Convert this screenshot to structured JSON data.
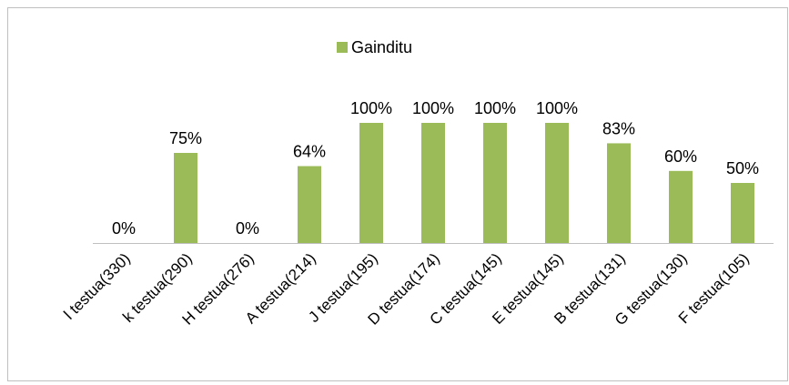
{
  "chart_data": {
    "type": "bar",
    "legend": "top",
    "series": [
      {
        "name": "Gainditu",
        "color": "#9bbb59",
        "values": [
          0,
          75,
          0,
          64,
          100,
          100,
          100,
          100,
          83,
          60,
          50
        ],
        "value_labels": [
          "0%",
          "75%",
          "0%",
          "64%",
          "100%",
          "100%",
          "100%",
          "100%",
          "83%",
          "60%",
          "50%"
        ]
      }
    ],
    "categories": [
      "l testua(330)",
      "k testua(290)",
      "H testua(276)",
      "A testua(214)",
      "J testua(195)",
      "D testua(174)",
      "C testua(145)",
      "E testua(145)",
      "B testua(131)",
      "G testua(130)",
      "F testua(105)"
    ]
  }
}
